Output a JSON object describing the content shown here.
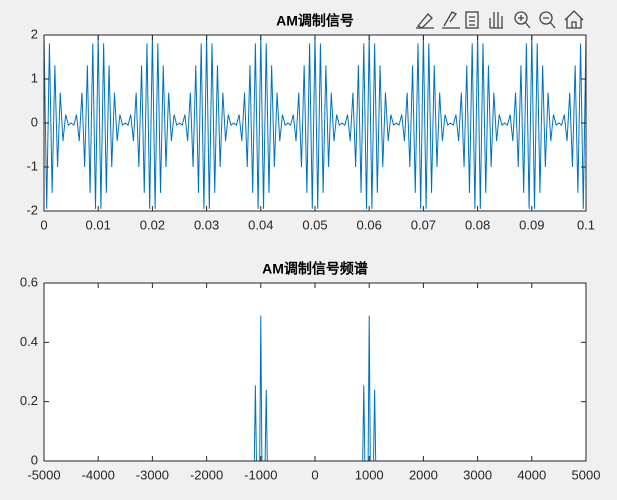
{
  "chart_data": [
    {
      "type": "line",
      "title": "AM调制信号",
      "color": "#0072bd",
      "xlim": [
        0,
        0.1
      ],
      "xticks": [
        0,
        0.01,
        0.02,
        0.03,
        0.04,
        0.05,
        0.06,
        0.07,
        0.08,
        0.09,
        0.1
      ],
      "ylim": [
        -2,
        2
      ],
      "yticks": [
        -2,
        -1,
        0,
        1,
        2
      ],
      "x": [
        0,
        0.0005,
        0.001,
        0.0015,
        0.002,
        0.0025,
        0.003,
        0.0035,
        0.004,
        0.0045,
        0.005,
        0.0055,
        0.006,
        0.0065,
        0.007,
        0.0075,
        0.008,
        0.0085,
        0.009,
        0.0095,
        0.01,
        0.0105,
        0.011,
        0.0115,
        0.012,
        0.0125,
        0.013,
        0.0135,
        0.014,
        0.0145,
        0.015,
        0.0155,
        0.016,
        0.0165,
        0.017,
        0.0175,
        0.018,
        0.0185,
        0.019,
        0.0195,
        0.02,
        0.0205,
        0.021,
        0.0215,
        0.022,
        0.0225,
        0.023,
        0.0235,
        0.024,
        0.0245,
        0.025,
        0.0255,
        0.026,
        0.0265,
        0.027,
        0.0275,
        0.028,
        0.0285,
        0.029,
        0.0295,
        0.03,
        0.0305,
        0.031,
        0.0315,
        0.032,
        0.0325,
        0.033,
        0.0335,
        0.034,
        0.0345,
        0.035,
        0.0355,
        0.036,
        0.0365,
        0.037,
        0.0375,
        0.038,
        0.0385,
        0.039,
        0.0395,
        0.04,
        0.0405,
        0.041,
        0.0415,
        0.042,
        0.0425,
        0.043,
        0.0435,
        0.044,
        0.0445,
        0.045,
        0.0455,
        0.046,
        0.0465,
        0.047,
        0.0475,
        0.048,
        0.0485,
        0.049,
        0.0495,
        0.05,
        0.0505,
        0.051,
        0.0515,
        0.052,
        0.0525,
        0.053,
        0.0535,
        0.054,
        0.0545,
        0.055,
        0.0555,
        0.056,
        0.0565,
        0.057,
        0.0575,
        0.058,
        0.0585,
        0.059,
        0.0595,
        0.06,
        0.0605,
        0.061,
        0.0615,
        0.062,
        0.0625,
        0.063,
        0.0635,
        0.064,
        0.0645,
        0.065,
        0.0655,
        0.066,
        0.0665,
        0.067,
        0.0675,
        0.068,
        0.0685,
        0.069,
        0.0695,
        0.07,
        0.0705,
        0.071,
        0.0715,
        0.072,
        0.0725,
        0.073,
        0.0735,
        0.074,
        0.0745,
        0.075,
        0.0755,
        0.076,
        0.0765,
        0.077,
        0.0775,
        0.078,
        0.0785,
        0.079,
        0.0795,
        0.08,
        0.0805,
        0.081,
        0.0815,
        0.082,
        0.0825,
        0.083,
        0.0835,
        0.084,
        0.0845,
        0.085,
        0.0855,
        0.086,
        0.0865,
        0.087,
        0.0875,
        0.088,
        0.0885,
        0.089,
        0.0895,
        0.09,
        0.0905,
        0.091,
        0.0915,
        0.092,
        0.0925,
        0.093,
        0.0935,
        0.094,
        0.0945,
        0.095,
        0.0955,
        0.096,
        0.0965,
        0.097,
        0.0975,
        0.098,
        0.0985,
        0.099,
        0.0995,
        0.1
      ],
      "values": [
        2,
        -1.951,
        1.809,
        -1.588,
        1.309,
        -1,
        0.691,
        -0.412,
        0.191,
        -0.049,
        0,
        -0.049,
        0.191,
        -0.412,
        0.691,
        -1,
        1.309,
        -1.588,
        1.809,
        -1.951,
        2,
        -1.951,
        1.809,
        -1.588,
        1.309,
        -1,
        0.691,
        -0.412,
        0.191,
        -0.049,
        0,
        -0.049,
        0.191,
        -0.412,
        0.691,
        -1,
        1.309,
        -1.588,
        1.809,
        -1.951,
        2,
        -1.951,
        1.809,
        -1.588,
        1.309,
        -1,
        0.691,
        -0.412,
        0.191,
        -0.049,
        0,
        -0.049,
        0.191,
        -0.412,
        0.691,
        -1,
        1.309,
        -1.588,
        1.809,
        -1.951,
        2,
        -1.951,
        1.809,
        -1.588,
        1.309,
        -1,
        0.691,
        -0.412,
        0.191,
        -0.049,
        0,
        -0.049,
        0.191,
        -0.412,
        0.691,
        -1,
        1.309,
        -1.588,
        1.809,
        -1.951,
        2,
        -1.951,
        1.809,
        -1.588,
        1.309,
        -1,
        0.691,
        -0.412,
        0.191,
        -0.049,
        0,
        -0.049,
        0.191,
        -0.412,
        0.691,
        -1,
        1.309,
        -1.588,
        1.809,
        -1.951,
        2,
        -1.951,
        1.809,
        -1.588,
        1.309,
        -1,
        0.691,
        -0.412,
        0.191,
        -0.049,
        0,
        -0.049,
        0.191,
        -0.412,
        0.691,
        -1,
        1.309,
        -1.588,
        1.809,
        -1.951,
        2,
        -1.951,
        1.809,
        -1.588,
        1.309,
        -1,
        0.691,
        -0.412,
        0.191,
        -0.049,
        0,
        -0.049,
        0.191,
        -0.412,
        0.691,
        -1,
        1.309,
        -1.588,
        1.809,
        -1.951,
        2,
        -1.951,
        1.809,
        -1.588,
        1.309,
        -1,
        0.691,
        -0.412,
        0.191,
        -0.049,
        0,
        -0.049,
        0.191,
        -0.412,
        0.691,
        -1,
        1.309,
        -1.588,
        1.809,
        -1.951,
        2,
        -1.951,
        1.809,
        -1.588,
        1.309,
        -1,
        0.691,
        -0.412,
        0.191,
        -0.049,
        0,
        -0.049,
        0.191,
        -0.412,
        0.691,
        -1,
        1.309,
        -1.588,
        1.809,
        -1.951,
        2,
        -1.951,
        1.809,
        -1.588,
        1.309,
        -1,
        0.691,
        -0.412,
        0.191,
        -0.049,
        0,
        -0.049,
        0.191,
        -0.412,
        0.691,
        -1,
        1.309,
        -1.588,
        1.809,
        -1.951,
        2
      ]
    },
    {
      "type": "line",
      "title": "AM调制信号频谱",
      "color": "#0072bd",
      "xlim": [
        -5000,
        5000
      ],
      "xticks": [
        -5000,
        -4000,
        -3000,
        -2000,
        -1000,
        0,
        1000,
        2000,
        3000,
        4000,
        5000
      ],
      "ylim": [
        0,
        0.6
      ],
      "yticks": [
        0,
        0.2,
        0.4,
        0.6
      ],
      "x": [
        -5000,
        -1120,
        -1100,
        -1080,
        -1020,
        -1000,
        -980,
        -920,
        -900,
        -880,
        880,
        900,
        920,
        980,
        1000,
        1020,
        1080,
        1100,
        1120,
        5000
      ],
      "values": [
        0,
        0,
        0.255,
        0,
        0,
        0.49,
        0,
        0,
        0.24,
        0,
        0,
        0.255,
        0,
        0,
        0.49,
        0,
        0,
        0.24,
        0,
        0
      ]
    }
  ]
}
